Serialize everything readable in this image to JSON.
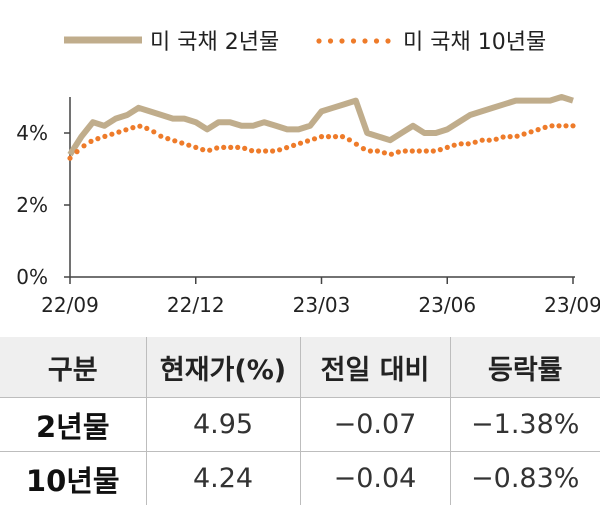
{
  "chart_data": {
    "type": "line",
    "legend": {
      "placement": "top"
    },
    "ylim": [
      0,
      5
    ],
    "y_ticks": [
      "0%",
      "2%",
      "4%"
    ],
    "x_ticks": [
      "22/09",
      "22/12",
      "23/03",
      "23/06",
      "23/09"
    ],
    "colors": {
      "series_2y": "#c0ad8c",
      "series_10y": "#ee7b2a"
    },
    "series": [
      {
        "name": "미 국채 2년물",
        "style": "solid",
        "x_start": "22/09",
        "x_end": "23/09",
        "values": [
          3.4,
          3.9,
          4.3,
          4.2,
          4.4,
          4.5,
          4.7,
          4.6,
          4.5,
          4.4,
          4.4,
          4.3,
          4.1,
          4.3,
          4.3,
          4.2,
          4.2,
          4.3,
          4.2,
          4.1,
          4.1,
          4.2,
          4.6,
          4.7,
          4.8,
          4.9,
          4.0,
          3.9,
          3.8,
          4.0,
          4.2,
          4.0,
          4.0,
          4.1,
          4.3,
          4.5,
          4.6,
          4.7,
          4.8,
          4.9,
          4.9,
          4.9,
          4.9,
          5.0,
          4.9
        ]
      },
      {
        "name": "미 국채 10년물",
        "style": "dotted",
        "x_start": "22/09",
        "x_end": "23/09",
        "values": [
          3.3,
          3.6,
          3.8,
          3.9,
          4.0,
          4.1,
          4.2,
          4.1,
          3.9,
          3.8,
          3.7,
          3.6,
          3.5,
          3.6,
          3.6,
          3.6,
          3.5,
          3.5,
          3.5,
          3.6,
          3.7,
          3.8,
          3.9,
          3.9,
          3.9,
          3.7,
          3.5,
          3.5,
          3.4,
          3.5,
          3.5,
          3.5,
          3.5,
          3.6,
          3.7,
          3.7,
          3.8,
          3.8,
          3.9,
          3.9,
          4.0,
          4.1,
          4.2,
          4.2,
          4.2
        ]
      }
    ]
  },
  "table": {
    "headers": [
      "구분",
      "현재가(%)",
      "전일 대비",
      "등락률"
    ],
    "rows": [
      {
        "label": "2년물",
        "price": "4.95",
        "change": "−0.07",
        "rate": "−1.38%"
      },
      {
        "label": "10년물",
        "price": "4.24",
        "change": "−0.04",
        "rate": "−0.83%"
      }
    ]
  }
}
